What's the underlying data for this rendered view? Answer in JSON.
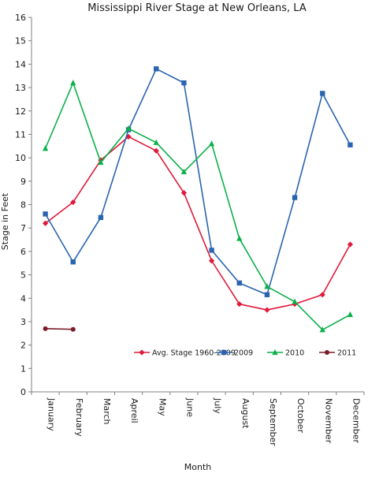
{
  "chart_data": {
    "type": "line",
    "title": "Mississippi River Stage at New Orleans, LA",
    "xlabel": "Month",
    "ylabel": "Stage in Feet",
    "ylim": [
      0,
      16
    ],
    "yticks": [
      "0",
      "1",
      "2",
      "3",
      "4",
      "5",
      "6",
      "7",
      "8",
      "9",
      "10",
      "11",
      "12",
      "13",
      "14",
      "15",
      "16"
    ],
    "categories": [
      "January",
      "February",
      "March",
      "Apreil",
      "May",
      "June",
      "July",
      "August",
      "September",
      "October",
      "November",
      "December"
    ],
    "grid": false,
    "legend_position": "bottom-right",
    "series": [
      {
        "name": "Avg. Stage 1960-2009",
        "color": "#e0193a",
        "marker": "diamond",
        "values": [
          7.2,
          8.1,
          9.9,
          10.9,
          10.3,
          8.5,
          5.6,
          3.75,
          3.5,
          3.75,
          4.15,
          6.3
        ]
      },
      {
        "name": "2009",
        "color": "#2a64b0",
        "marker": "square",
        "values": [
          7.6,
          5.55,
          7.45,
          11.2,
          13.8,
          13.2,
          6.05,
          4.65,
          4.15,
          8.3,
          12.75,
          10.55
        ]
      },
      {
        "name": "2010",
        "color": "#0ab04a",
        "marker": "triangle",
        "values": [
          10.4,
          13.2,
          9.8,
          11.25,
          10.65,
          9.4,
          10.6,
          6.55,
          4.5,
          3.85,
          2.65,
          3.3
        ]
      },
      {
        "name": "2011",
        "color": "#7a1c2a",
        "marker": "circle",
        "values": [
          2.7,
          2.67,
          null,
          null,
          null,
          null,
          null,
          null,
          null,
          null,
          null,
          null
        ]
      }
    ]
  }
}
